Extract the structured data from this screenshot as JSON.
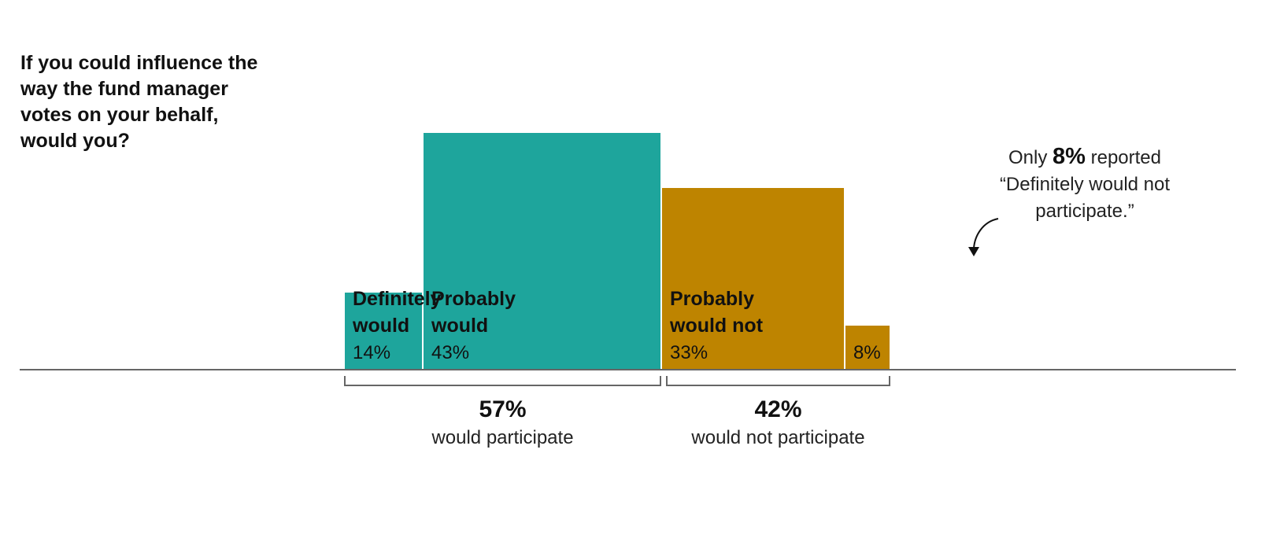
{
  "title_lines": [
    "If you could influence the",
    "way the fund manager",
    "votes on your behalf,",
    "would you?"
  ],
  "chart_data": {
    "type": "bar",
    "categories": [
      "Definitely would",
      "Probably would",
      "Probably would not",
      "Definitely would not"
    ],
    "values": [
      14,
      43,
      33,
      8
    ],
    "bar_labels": [
      [
        "Definitely",
        "would"
      ],
      [
        "Probably",
        "would"
      ],
      [
        "Probably",
        "would not"
      ],
      []
    ],
    "value_labels": [
      "14%",
      "43%",
      "33%",
      "8%"
    ],
    "colors": [
      "#1ea59c",
      "#1ea59c",
      "#be8400",
      "#be8400"
    ],
    "groups": [
      {
        "percent": "57%",
        "label": "would participate",
        "categories": [
          "Definitely would",
          "Probably would"
        ]
      },
      {
        "percent": "42%",
        "label": "would not participate",
        "categories": [
          "Probably would not",
          "Definitely would not"
        ]
      }
    ],
    "annotation": {
      "prefix": "Only ",
      "highlight": "8%",
      "suffix": " reported",
      "line2": "“Definitely would not",
      "line3": "participate.”"
    }
  }
}
